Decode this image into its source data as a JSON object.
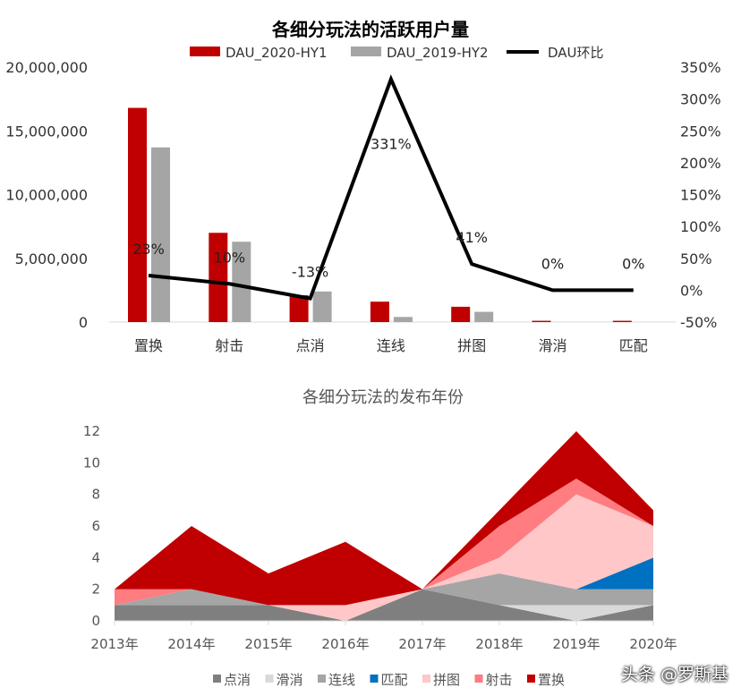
{
  "chart_data": [
    {
      "type": "bar+line",
      "title": "各细分玩法的活跃用户量",
      "categories": [
        "置换",
        "射击",
        "点消",
        "连线",
        "拼图",
        "滑消",
        "匹配"
      ],
      "series": [
        {
          "name": "DAU_2020-HY1",
          "type": "bar",
          "color": "#C00000",
          "values": [
            16800000,
            7000000,
            2100000,
            1600000,
            1200000,
            100000,
            100000
          ]
        },
        {
          "name": "DAU_2019-HY2",
          "type": "bar",
          "color": "#A5A5A5",
          "values": [
            13700000,
            6300000,
            2400000,
            400000,
            800000,
            0,
            0
          ]
        },
        {
          "name": "DAU环比",
          "type": "line",
          "axis": "right",
          "color": "#000000",
          "values": [
            23,
            10,
            -13,
            331,
            41,
            0,
            0
          ],
          "labels": [
            "23%",
            "10%",
            "-13%",
            "331%",
            "41%",
            "0%",
            "0%"
          ]
        }
      ],
      "ylim": [
        0,
        20000000
      ],
      "yticks": [
        "0",
        "5,000,000",
        "10,000,000",
        "15,000,000",
        "20,000,000"
      ],
      "y2lim": [
        -50,
        350
      ],
      "y2ticks": [
        "-50%",
        "0%",
        "50%",
        "100%",
        "150%",
        "200%",
        "250%",
        "300%",
        "350%"
      ],
      "legend": "top"
    },
    {
      "type": "area",
      "stacked": true,
      "title": "各细分玩法的发布年份",
      "x": [
        "2013年",
        "2014年",
        "2015年",
        "2016年",
        "2017年",
        "2018年",
        "2019年",
        "2020年"
      ],
      "series": [
        {
          "name": "点消",
          "color": "#7F7F7F",
          "values": [
            1,
            1,
            1,
            0,
            2,
            1,
            0,
            1
          ]
        },
        {
          "name": "滑消",
          "color": "#D9D9D9",
          "values": [
            0,
            0,
            0,
            0,
            0,
            0,
            1,
            0
          ]
        },
        {
          "name": "连线",
          "color": "#A5A5A5",
          "values": [
            0,
            1,
            0,
            0,
            0,
            2,
            1,
            1
          ]
        },
        {
          "name": "匹配",
          "color": "#0070C0",
          "values": [
            0,
            0,
            0,
            0,
            0,
            0,
            0,
            2
          ]
        },
        {
          "name": "拼图",
          "color": "#FFC7C7",
          "values": [
            0,
            0,
            0,
            1,
            0,
            1,
            6,
            2
          ]
        },
        {
          "name": "射击",
          "color": "#FF7C80",
          "values": [
            1,
            0,
            0,
            0,
            0,
            2,
            1,
            0
          ]
        },
        {
          "name": "置换",
          "color": "#C00000",
          "values": [
            0,
            4,
            2,
            4,
            0,
            1,
            3,
            1
          ]
        }
      ],
      "ylim": [
        0,
        12
      ],
      "yticks": [
        "0",
        "2",
        "4",
        "6",
        "8",
        "10",
        "12"
      ],
      "legend": "bottom"
    }
  ],
  "watermark": "头条 @罗斯基"
}
